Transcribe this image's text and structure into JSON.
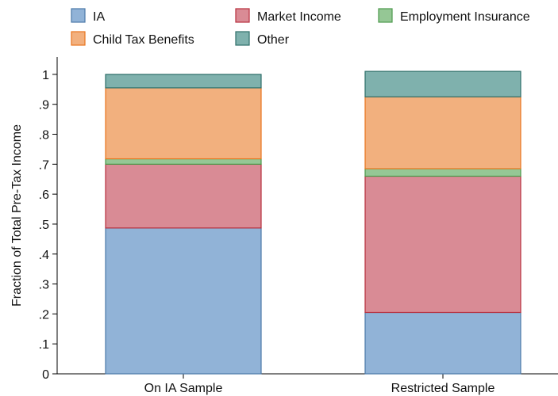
{
  "chart_data": {
    "type": "bar",
    "stacked": true,
    "categories": [
      "On IA Sample",
      "Restricted Sample"
    ],
    "series": [
      {
        "name": "IA",
        "values": [
          0.487,
          0.205
        ],
        "color": "#91b3d7",
        "stroke": "#4b79a8"
      },
      {
        "name": "Market Income",
        "values": [
          0.213,
          0.455
        ],
        "color": "#d98b95",
        "stroke": "#b8303e"
      },
      {
        "name": "Employment Insurance",
        "values": [
          0.018,
          0.025
        ],
        "color": "#95c795",
        "stroke": "#4c9a4c"
      },
      {
        "name": "Child Tax Benefits",
        "values": [
          0.237,
          0.24
        ],
        "color": "#f2b07e",
        "stroke": "#e8761e"
      },
      {
        "name": "Other",
        "values": [
          0.045,
          0.085
        ],
        "color": "#7fb1ad",
        "stroke": "#2f6f6a"
      }
    ],
    "legend_order": [
      "IA",
      "Market Income",
      "Employment Insurance",
      "Child Tax Benefits",
      "Other"
    ],
    "legend_position": "top",
    "xlabel": "",
    "ylabel": "Fraction of Total Pre-Tax Income",
    "ylim": [
      0,
      1.05
    ],
    "yticks": [
      0,
      0.1,
      0.2,
      0.3,
      0.4,
      0.5,
      0.6,
      0.7,
      0.8,
      0.9,
      1
    ],
    "ytick_labels": [
      "0",
      ".1",
      ".2",
      ".3",
      ".4",
      ".5",
      ".6",
      ".7",
      ".8",
      ".9",
      "1"
    ],
    "grid": false
  }
}
